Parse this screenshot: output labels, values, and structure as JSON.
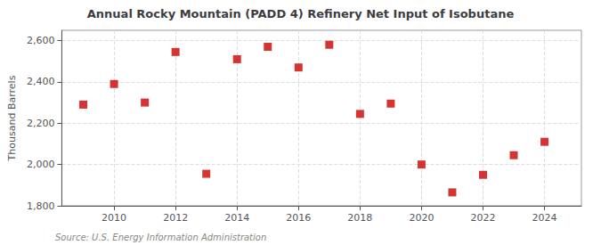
{
  "chart_data": {
    "type": "scatter",
    "title": "Annual Rocky Mountain (PADD 4) Refinery Net Input of Isobutane",
    "ylabel": "Thousand Barrels",
    "annotation": "Source: U.S. Energy Information Administration",
    "x": [
      2009,
      2010,
      2011,
      2012,
      2013,
      2014,
      2015,
      2016,
      2017,
      2018,
      2019,
      2020,
      2021,
      2022,
      2023,
      2024
    ],
    "values": [
      2290,
      2390,
      2300,
      2545,
      1955,
      2510,
      2570,
      2470,
      2580,
      2245,
      2295,
      2000,
      1865,
      1950,
      2045,
      2110
    ],
    "color": "#cc0000",
    "marker": "square",
    "xlim": [
      2008.3,
      2025.2
    ],
    "xticks": [
      2010,
      2012,
      2014,
      2016,
      2018,
      2020,
      2022,
      2024
    ],
    "ylim": [
      1800,
      2650
    ],
    "yticks": [
      {
        "value": 1800,
        "label": "1,800"
      },
      {
        "value": 2000,
        "label": "2,000"
      },
      {
        "value": 2200,
        "label": "2,200"
      },
      {
        "value": 2400,
        "label": "2,400"
      },
      {
        "value": 2600,
        "label": "2,600"
      }
    ],
    "grid": true
  }
}
